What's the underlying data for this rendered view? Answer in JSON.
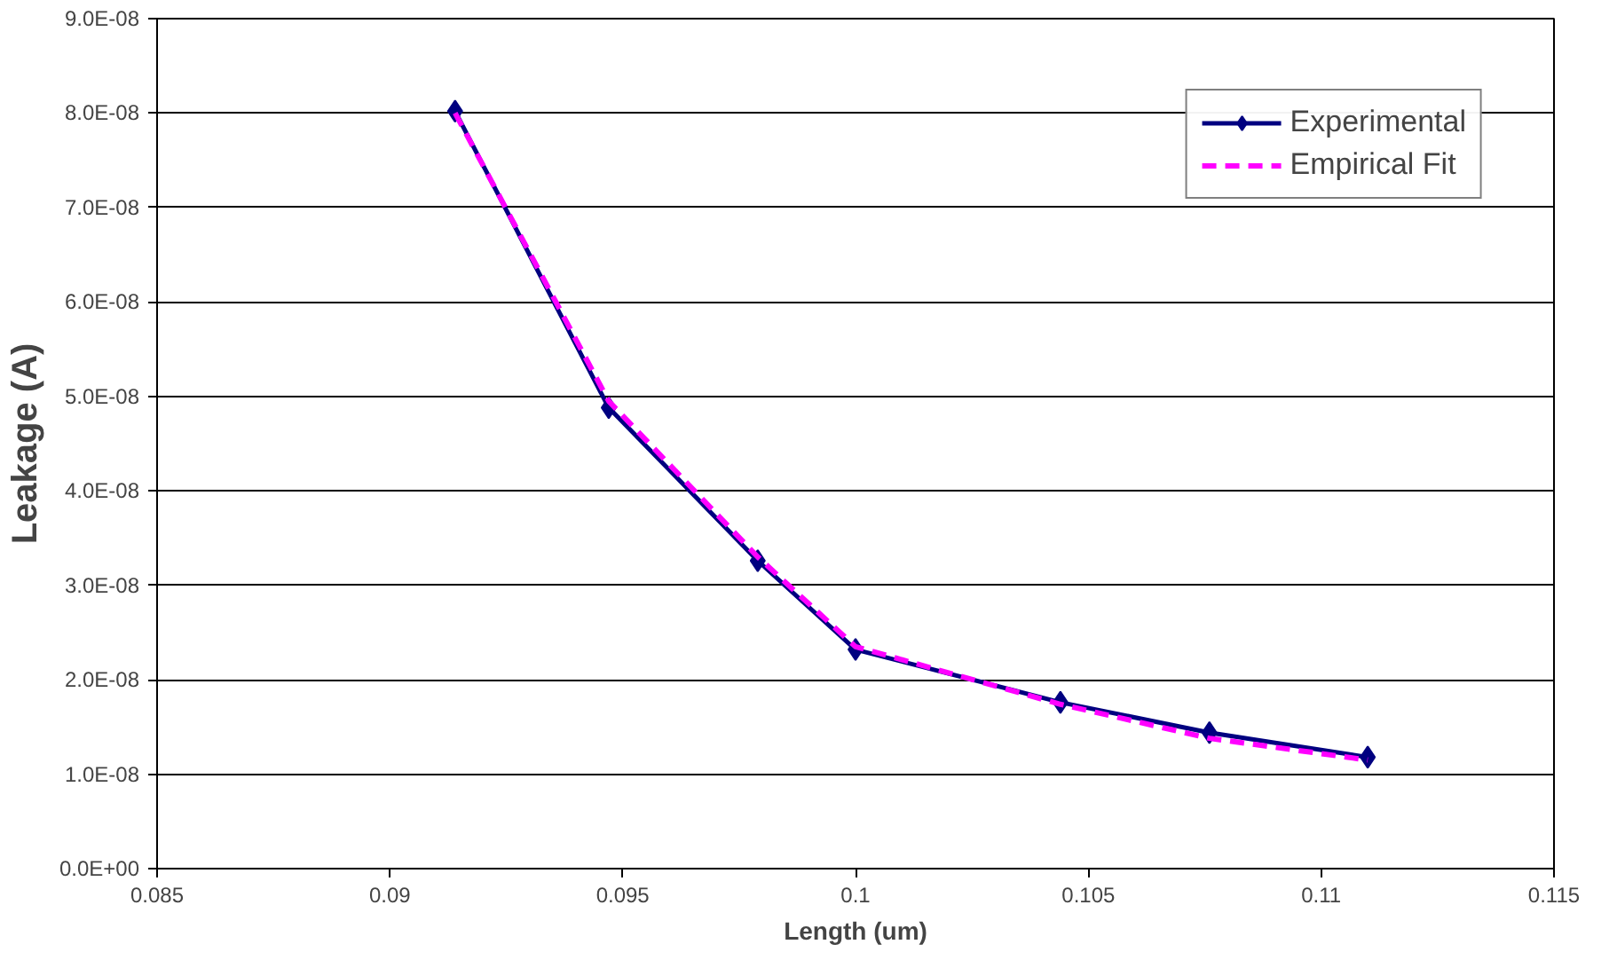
{
  "chart_data": {
    "type": "line",
    "xlabel": "Length (um)",
    "ylabel": "Leakage (A)",
    "xlim": [
      0.085,
      0.115
    ],
    "xticks": [
      0.085,
      0.09,
      0.095,
      0.1,
      0.105,
      0.11,
      0.115
    ],
    "ylim": [
      0,
      9e-08
    ],
    "yticks": [
      {
        "value": 0,
        "label": "0.0E+00"
      },
      {
        "value": 1e-08,
        "label": "1.0E-08"
      },
      {
        "value": 2e-08,
        "label": "2.0E-08"
      },
      {
        "value": 3e-08,
        "label": "3.0E-08"
      },
      {
        "value": 4e-08,
        "label": "4.0E-08"
      },
      {
        "value": 5e-08,
        "label": "5.0E-08"
      },
      {
        "value": 6e-08,
        "label": "6.0E-08"
      },
      {
        "value": 7e-08,
        "label": "7.0E-08"
      },
      {
        "value": 8e-08,
        "label": "8.0E-08"
      },
      {
        "value": 9e-08,
        "label": "9.0E-08"
      }
    ],
    "x": [
      0.0914,
      0.0947,
      0.0979,
      0.1,
      0.1044,
      0.1076,
      0.111
    ],
    "grid": "y",
    "legend": "top right",
    "series": [
      {
        "name": "Experimental",
        "color": "#000080",
        "marker": "diamond",
        "line_style": "solid",
        "values": [
          8.02e-08,
          4.88e-08,
          3.26e-08,
          2.32e-08,
          1.76e-08,
          1.44e-08,
          1.18e-08
        ]
      },
      {
        "name": "Empirical Fit",
        "color": "#ff00ff",
        "marker": "none",
        "line_style": "dashed",
        "values": [
          8e-08,
          4.95e-08,
          3.3e-08,
          2.35e-08,
          1.74e-08,
          1.38e-08,
          1.15e-08
        ]
      }
    ]
  }
}
